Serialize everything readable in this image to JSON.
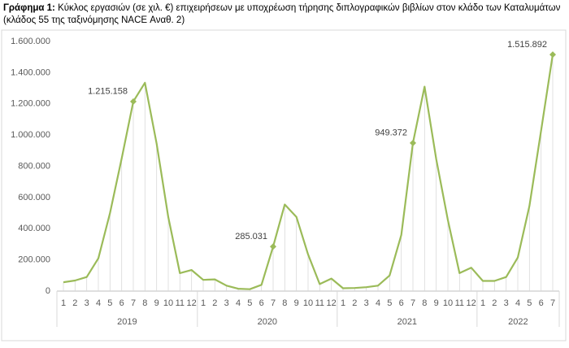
{
  "chart_data": {
    "type": "line",
    "title_label": "Γράφημα 1:",
    "title": "Κύκλος εργασιών (σε χιλ. €) επιχειρήσεων με υποχρέωση τήρησης διπλογραφικών βιβλίων στον κλάδο των Καταλυμάτων",
    "subtitle": "(κλάδος 55 της ταξινόμησης NACE Αναθ. 2)",
    "groups": [
      {
        "label": "2019",
        "categories": [
          "1",
          "2",
          "3",
          "4",
          "5",
          "6",
          "7",
          "8",
          "9",
          "10",
          "11",
          "12"
        ]
      },
      {
        "label": "2020",
        "categories": [
          "1",
          "2",
          "3",
          "4",
          "5",
          "6",
          "7",
          "8",
          "9",
          "10",
          "11",
          "12"
        ]
      },
      {
        "label": "2021",
        "categories": [
          "1",
          "2",
          "3",
          "4",
          "5",
          "6",
          "7",
          "8",
          "9",
          "10",
          "11",
          "12"
        ]
      },
      {
        "label": "2022",
        "categories": [
          "1",
          "2",
          "3",
          "4",
          "5",
          "6",
          "7"
        ]
      }
    ],
    "values": [
      57000,
      68000,
      90000,
      210000,
      500000,
      850000,
      1215158,
      1335000,
      945000,
      475000,
      115000,
      135000,
      72000,
      75000,
      35000,
      15000,
      12000,
      40000,
      285031,
      555000,
      475000,
      235000,
      45000,
      80000,
      18000,
      20000,
      25000,
      35000,
      100000,
      360000,
      949372,
      1310000,
      845000,
      455000,
      115000,
      150000,
      65000,
      65000,
      90000,
      215000,
      545000,
      1030000,
      1515892
    ],
    "value_labels": [
      null,
      null,
      null,
      null,
      null,
      null,
      "1.215.158",
      null,
      null,
      null,
      null,
      null,
      null,
      null,
      null,
      null,
      null,
      null,
      "285.031",
      null,
      null,
      null,
      null,
      null,
      null,
      null,
      null,
      null,
      null,
      null,
      "949.372",
      null,
      null,
      null,
      null,
      null,
      null,
      null,
      null,
      null,
      null,
      null,
      "1.515.892"
    ],
    "color": "#9bbb59",
    "ylim": [
      0,
      1600000
    ],
    "yticks": [
      0,
      {
        "value": 200000,
        "label": "200.000"
      },
      {
        "value": 400000,
        "label": "400.000"
      },
      {
        "value": 600000,
        "label": "600.000"
      },
      {
        "value": 800000,
        "label": "800.000"
      },
      {
        "value": 1000000,
        "label": "1.000.000"
      },
      {
        "value": 1200000,
        "label": "1.200.000"
      },
      {
        "value": 1400000,
        "label": "1.400.000"
      },
      {
        "value": 1600000,
        "label": "1.600.000"
      }
    ]
  }
}
